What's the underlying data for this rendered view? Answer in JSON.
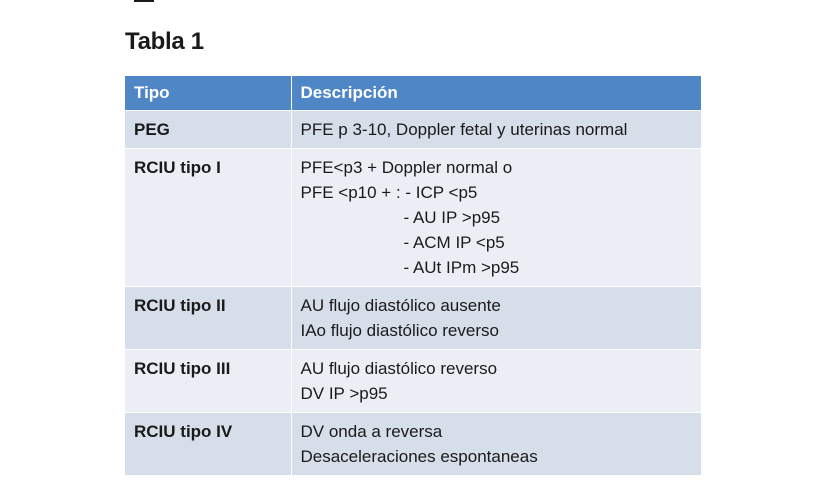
{
  "title": "Tabla 1",
  "table": {
    "headers": {
      "tipo": "Tipo",
      "descripcion": "Descripción"
    },
    "rows": [
      {
        "tipo": "PEG",
        "lines": [
          "PFE p 3-10, Doppler fetal y uterinas normal"
        ]
      },
      {
        "tipo": "RCIU tipo I",
        "lines": [
          "PFE<p3 + Doppler normal o",
          "PFE <p10 + : - ICP <p5",
          "- AU IP >p95",
          "- ACM IP <p5",
          "- AUt IPm >p95"
        ]
      },
      {
        "tipo": "RCIU tipo II",
        "lines": [
          "AU flujo diastólico ausente",
          "IAo flujo diastólico reverso"
        ]
      },
      {
        "tipo": "RCIU tipo III",
        "lines": [
          "AU flujo diastólico reverso",
          "DV IP >p95"
        ]
      },
      {
        "tipo": "RCIU tipo IV",
        "lines": [
          "DV onda a reversa",
          "Desaceleraciones espontaneas"
        ]
      }
    ]
  }
}
